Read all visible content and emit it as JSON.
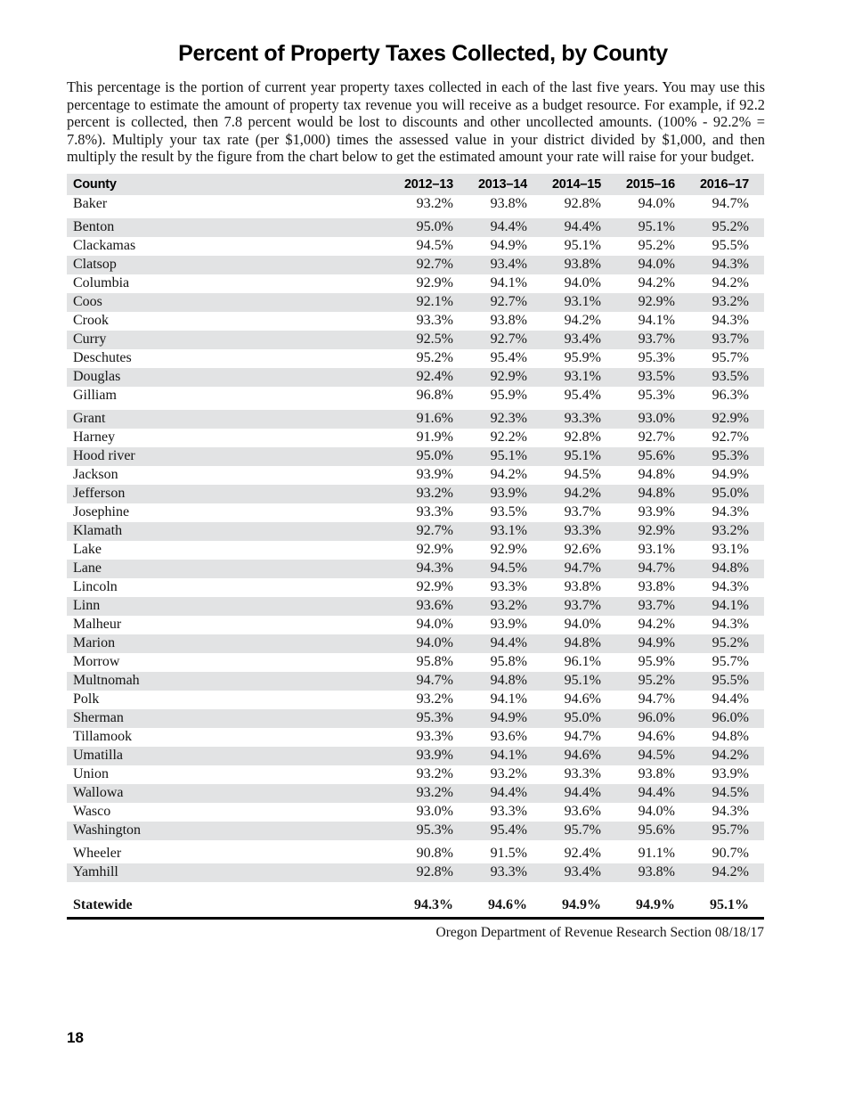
{
  "page": {
    "title": "Percent of Property Taxes Collected, by County",
    "intro": "This percentage is the portion of current year property taxes collected in each of the last five years. You may use this percentage to estimate the amount of property tax revenue you will receive as a budget resource. For example, if 92.2 percent is collected, then 7.8 percent would be lost to discounts and other uncollected amounts. (100% - 92.2% = 7.8%). Multiply your tax rate (per $1,000) times the assessed value in your district divided by $1,000, and then multiply the result by the figure from the chart below to get the estimated amount your rate will raise for your budget.",
    "footer_note": "Oregon Department of Revenue Research Section 08/18/17",
    "page_number": "18"
  },
  "table": {
    "stripe_color": "#e2e3e4",
    "columns": [
      "County",
      "2012–13",
      "2013–14",
      "2014–15",
      "2015–16",
      "2016–17"
    ],
    "rows": [
      {
        "county": "Baker",
        "values": [
          "93.2%",
          "93.8%",
          "92.8%",
          "94.0%",
          "94.7%"
        ]
      },
      {
        "county": "Benton",
        "values": [
          "95.0%",
          "94.4%",
          "94.4%",
          "95.1%",
          "95.2%"
        ],
        "gap_before": true
      },
      {
        "county": "Clackamas",
        "values": [
          "94.5%",
          "94.9%",
          "95.1%",
          "95.2%",
          "95.5%"
        ]
      },
      {
        "county": "Clatsop",
        "values": [
          "92.7%",
          "93.4%",
          "93.8%",
          "94.0%",
          "94.3%"
        ]
      },
      {
        "county": "Columbia",
        "values": [
          "92.9%",
          "94.1%",
          "94.0%",
          "94.2%",
          "94.2%"
        ]
      },
      {
        "county": "Coos",
        "values": [
          "92.1%",
          "92.7%",
          "93.1%",
          "92.9%",
          "93.2%"
        ]
      },
      {
        "county": "Crook",
        "values": [
          "93.3%",
          "93.8%",
          "94.2%",
          "94.1%",
          "94.3%"
        ]
      },
      {
        "county": "Curry",
        "values": [
          "92.5%",
          "92.7%",
          "93.4%",
          "93.7%",
          "93.7%"
        ]
      },
      {
        "county": "Deschutes",
        "values": [
          "95.2%",
          "95.4%",
          "95.9%",
          "95.3%",
          "95.7%"
        ]
      },
      {
        "county": "Douglas",
        "values": [
          "92.4%",
          "92.9%",
          "93.1%",
          "93.5%",
          "93.5%"
        ]
      },
      {
        "county": "Gilliam",
        "values": [
          "96.8%",
          "95.9%",
          "95.4%",
          "95.3%",
          "96.3%"
        ]
      },
      {
        "county": "Grant",
        "values": [
          "91.6%",
          "92.3%",
          "93.3%",
          "93.0%",
          "92.9%"
        ],
        "gap_before": true
      },
      {
        "county": "Harney",
        "values": [
          "91.9%",
          "92.2%",
          "92.8%",
          "92.7%",
          "92.7%"
        ]
      },
      {
        "county": "Hood river",
        "values": [
          "95.0%",
          "95.1%",
          "95.1%",
          "95.6%",
          "95.3%"
        ]
      },
      {
        "county": "Jackson",
        "values": [
          "93.9%",
          "94.2%",
          "94.5%",
          "94.8%",
          "94.9%"
        ]
      },
      {
        "county": "Jefferson",
        "values": [
          "93.2%",
          "93.9%",
          "94.2%",
          "94.8%",
          "95.0%"
        ]
      },
      {
        "county": "Josephine",
        "values": [
          "93.3%",
          "93.5%",
          "93.7%",
          "93.9%",
          "94.3%"
        ]
      },
      {
        "county": "Klamath",
        "values": [
          "92.7%",
          "93.1%",
          "93.3%",
          "92.9%",
          "93.2%"
        ]
      },
      {
        "county": "Lake",
        "values": [
          "92.9%",
          "92.9%",
          "92.6%",
          "93.1%",
          "93.1%"
        ]
      },
      {
        "county": "Lane",
        "values": [
          "94.3%",
          "94.5%",
          "94.7%",
          "94.7%",
          "94.8%"
        ]
      },
      {
        "county": "Lincoln",
        "values": [
          "92.9%",
          "93.3%",
          "93.8%",
          "93.8%",
          "94.3%"
        ]
      },
      {
        "county": "Linn",
        "values": [
          "93.6%",
          "93.2%",
          "93.7%",
          "93.7%",
          "94.1%"
        ]
      },
      {
        "county": "Malheur",
        "values": [
          "94.0%",
          "93.9%",
          "94.0%",
          "94.2%",
          "94.3%"
        ]
      },
      {
        "county": "Marion",
        "values": [
          "94.0%",
          "94.4%",
          "94.8%",
          "94.9%",
          "95.2%"
        ]
      },
      {
        "county": "Morrow",
        "values": [
          "95.8%",
          "95.8%",
          "96.1%",
          "95.9%",
          "95.7%"
        ]
      },
      {
        "county": "Multnomah",
        "values": [
          "94.7%",
          "94.8%",
          "95.1%",
          "95.2%",
          "95.5%"
        ]
      },
      {
        "county": "Polk",
        "values": [
          "93.2%",
          "94.1%",
          "94.6%",
          "94.7%",
          "94.4%"
        ]
      },
      {
        "county": "Sherman",
        "values": [
          "95.3%",
          "94.9%",
          "95.0%",
          "96.0%",
          "96.0%"
        ]
      },
      {
        "county": "Tillamook",
        "values": [
          "93.3%",
          "93.6%",
          "94.7%",
          "94.6%",
          "94.8%"
        ]
      },
      {
        "county": "Umatilla",
        "values": [
          "93.9%",
          "94.1%",
          "94.6%",
          "94.5%",
          "94.2%"
        ]
      },
      {
        "county": "Union",
        "values": [
          "93.2%",
          "93.2%",
          "93.3%",
          "93.8%",
          "93.9%"
        ]
      },
      {
        "county": "Wallowa",
        "values": [
          "93.2%",
          "94.4%",
          "94.4%",
          "94.4%",
          "94.5%"
        ]
      },
      {
        "county": "Wasco",
        "values": [
          "93.0%",
          "93.3%",
          "93.6%",
          "94.0%",
          "94.3%"
        ]
      },
      {
        "county": "Washington",
        "values": [
          "95.3%",
          "95.4%",
          "95.7%",
          "95.6%",
          "95.7%"
        ]
      },
      {
        "county": "Wheeler",
        "values": [
          "90.8%",
          "91.5%",
          "92.4%",
          "91.1%",
          "90.7%"
        ],
        "gap_before": true
      },
      {
        "county": "Yamhill",
        "values": [
          "92.8%",
          "93.3%",
          "93.4%",
          "93.8%",
          "94.2%"
        ]
      }
    ],
    "statewide": {
      "label": "Statewide",
      "values": [
        "94.3%",
        "94.6%",
        "94.9%",
        "94.9%",
        "95.1%"
      ]
    }
  }
}
